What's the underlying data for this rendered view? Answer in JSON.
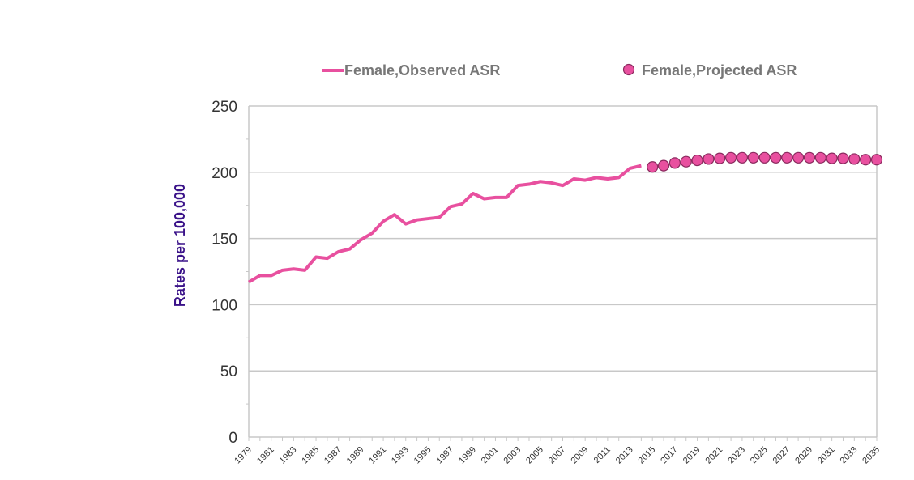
{
  "chart_data": {
    "type": "line",
    "ylabel": "Rates per 100,000",
    "ylim": [
      0,
      250
    ],
    "yticks": [
      0,
      50,
      100,
      150,
      200,
      250
    ],
    "xlim": [
      1979,
      2035
    ],
    "xticks": [
      1979,
      1981,
      1983,
      1985,
      1987,
      1989,
      1991,
      1993,
      1995,
      1997,
      1999,
      2001,
      2003,
      2005,
      2007,
      2009,
      2011,
      2013,
      2015,
      2017,
      2019,
      2021,
      2023,
      2025,
      2027,
      2029,
      2031,
      2033,
      2035
    ],
    "grid": true,
    "legend_position": "top",
    "series": [
      {
        "name": "Female,Observed ASR",
        "style": "line",
        "color": "#e8509f",
        "x": [
          1979,
          1980,
          1981,
          1982,
          1983,
          1984,
          1985,
          1986,
          1987,
          1988,
          1989,
          1990,
          1991,
          1992,
          1993,
          1994,
          1995,
          1996,
          1997,
          1998,
          1999,
          2000,
          2001,
          2002,
          2003,
          2004,
          2005,
          2006,
          2007,
          2008,
          2009,
          2010,
          2011,
          2012,
          2013,
          2014
        ],
        "y": [
          117,
          122,
          122,
          126,
          127,
          126,
          136,
          135,
          140,
          142,
          149,
          154,
          163,
          168,
          161,
          164,
          165,
          166,
          174,
          176,
          184,
          180,
          181,
          181,
          190,
          191,
          193,
          192,
          190,
          195,
          194,
          196,
          195,
          196,
          203,
          205
        ]
      },
      {
        "name": "Female,Projected ASR",
        "style": "markers",
        "color": "#e8509f",
        "x": [
          2015,
          2016,
          2017,
          2018,
          2019,
          2020,
          2021,
          2022,
          2023,
          2024,
          2025,
          2026,
          2027,
          2028,
          2029,
          2030,
          2031,
          2032,
          2033,
          2034,
          2035
        ],
        "y": [
          204,
          205,
          207,
          208,
          209,
          210,
          210.5,
          211,
          211,
          211,
          211,
          211,
          211,
          211,
          211,
          211,
          210.5,
          210.5,
          210,
          209.5,
          209.5
        ]
      }
    ]
  }
}
